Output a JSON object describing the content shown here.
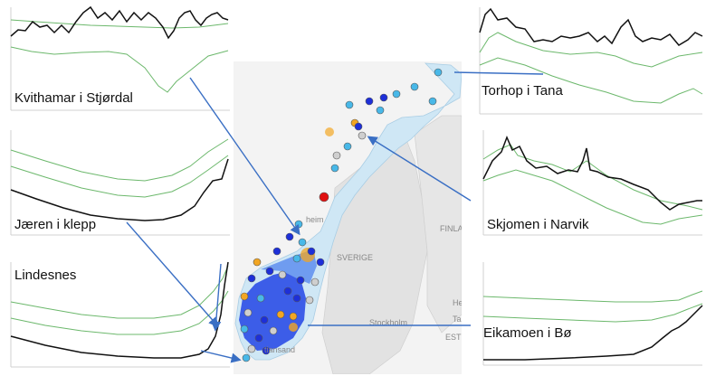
{
  "panels": {
    "kvithamar": {
      "label": "Kvithamar i Stjørdal"
    },
    "jaeren": {
      "label": "Jæren i klepp"
    },
    "lindesnes": {
      "label": "Lindesnes"
    },
    "torhop": {
      "label": "Torhop i Tana"
    },
    "skjomen": {
      "label": "Skjomen i Narvik"
    },
    "eikamoen": {
      "label": "Eikamoen i Bø"
    }
  },
  "map": {
    "labels": {
      "sverige": "SVERIGE",
      "finland": "FINLA",
      "trondheim": "heim",
      "stockholm": "Stockholm",
      "kristiansand": "tiansand",
      "helsinki": "Hel",
      "tallinn": "Tal",
      "estonia": "ESTL"
    }
  },
  "colors": {
    "observed": "#111111",
    "percentile_band": "#6cb86c",
    "arrow": "#3a6fc4",
    "station_dark_blue": "#1d2fd8",
    "station_light_blue": "#48b8e8",
    "station_orange": "#f2a623",
    "station_grey": "#cfcfcf",
    "station_red": "#e01010"
  }
}
